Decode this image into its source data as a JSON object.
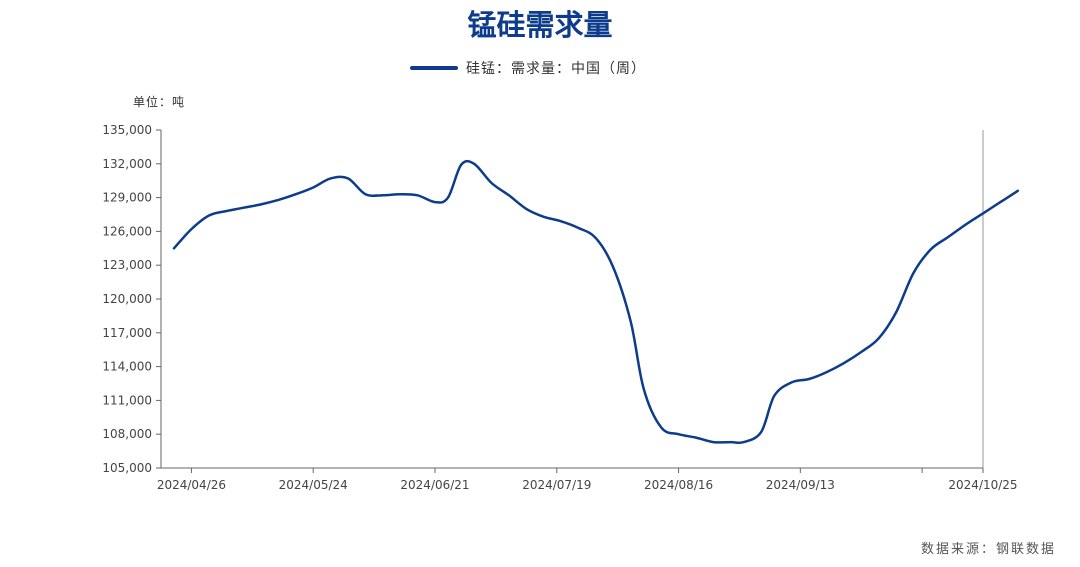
{
  "page": {
    "title": "锰硅需求量",
    "unit_label": "单位：吨",
    "source": "数据来源：钢联数据"
  },
  "colors": {
    "series": "#0d3c8c",
    "axis": "#666666"
  },
  "chart_data": {
    "type": "line",
    "title": "锰硅需求量",
    "ylabel": "单位：吨",
    "ylim": [
      105000,
      135000
    ],
    "yticks": [
      105000,
      108000,
      111000,
      114000,
      117000,
      120000,
      123000,
      126000,
      129000,
      132000,
      135000
    ],
    "ytick_labels": [
      "105,000",
      "108,000",
      "111,000",
      "114,000",
      "117,000",
      "120,000",
      "123,000",
      "126,000",
      "129,000",
      "132,000",
      "135,000"
    ],
    "xlim": [
      "2024-04-19",
      "2024-10-25"
    ],
    "xticks": [
      "2024-04-26",
      "2024-05-24",
      "2024-06-21",
      "2024-07-19",
      "2024-08-16",
      "2024-09-13",
      "2024-10-25"
    ],
    "xtick_labels": [
      "2024/04/26",
      "2024/05/24",
      "2024/06/21",
      "2024/07/19",
      "2024/08/16",
      "2024/09/13",
      "2024/10/25"
    ],
    "grid": false,
    "legend_position": "top-center",
    "series": [
      {
        "name": "硅锰：需求量：中国（周）",
        "points": [
          [
            "2024-04-22",
            124500
          ],
          [
            "2024-04-26",
            126200
          ],
          [
            "2024-04-30",
            127400
          ],
          [
            "2024-05-04",
            127800
          ],
          [
            "2024-05-08",
            128100
          ],
          [
            "2024-05-12",
            128400
          ],
          [
            "2024-05-16",
            128800
          ],
          [
            "2024-05-20",
            129300
          ],
          [
            "2024-05-24",
            129900
          ],
          [
            "2024-05-28",
            130700
          ],
          [
            "2024-06-01",
            130700
          ],
          [
            "2024-06-05",
            129300
          ],
          [
            "2024-06-09",
            129200
          ],
          [
            "2024-06-13",
            129300
          ],
          [
            "2024-06-17",
            129200
          ],
          [
            "2024-06-21",
            128600
          ],
          [
            "2024-06-24",
            129000
          ],
          [
            "2024-06-27",
            131900
          ],
          [
            "2024-06-30",
            132000
          ],
          [
            "2024-07-04",
            130300
          ],
          [
            "2024-07-08",
            129200
          ],
          [
            "2024-07-12",
            128000
          ],
          [
            "2024-07-16",
            127300
          ],
          [
            "2024-07-20",
            126900
          ],
          [
            "2024-07-24",
            126300
          ],
          [
            "2024-07-28",
            125400
          ],
          [
            "2024-08-01",
            122800
          ],
          [
            "2024-08-05",
            118000
          ],
          [
            "2024-08-08",
            112000
          ],
          [
            "2024-08-12",
            108600
          ],
          [
            "2024-08-16",
            108000
          ],
          [
            "2024-08-20",
            107700
          ],
          [
            "2024-08-24",
            107300
          ],
          [
            "2024-08-28",
            107300
          ],
          [
            "2024-08-31",
            107300
          ],
          [
            "2024-09-04",
            108200
          ],
          [
            "2024-09-07",
            111400
          ],
          [
            "2024-09-11",
            112600
          ],
          [
            "2024-09-15",
            112900
          ],
          [
            "2024-09-19",
            113500
          ],
          [
            "2024-09-23",
            114300
          ],
          [
            "2024-09-27",
            115300
          ],
          [
            "2024-10-01",
            116500
          ],
          [
            "2024-10-05",
            118800
          ],
          [
            "2024-10-09",
            122300
          ],
          [
            "2024-10-13",
            124400
          ],
          [
            "2024-10-17",
            125500
          ],
          [
            "2024-10-21",
            126600
          ],
          [
            "2024-10-25",
            127600
          ],
          [
            "2024-10-29",
            128600
          ],
          [
            "2024-11-02",
            129600
          ]
        ]
      }
    ]
  }
}
